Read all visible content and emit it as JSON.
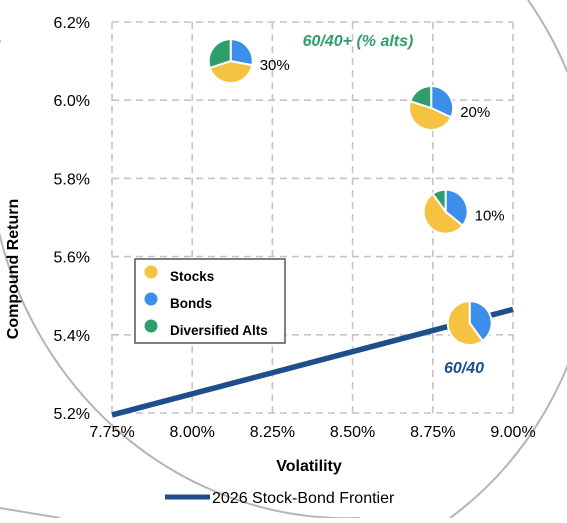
{
  "chart_data": {
    "type": "scatter",
    "xlabel": "Volatility",
    "ylabel": "Compound Return",
    "xlim": [
      7.75,
      9.0
    ],
    "ylim": [
      5.2,
      6.2
    ],
    "x_ticks": [
      "7.75%",
      "8.00%",
      "8.25%",
      "8.50%",
      "8.75%",
      "9.00%"
    ],
    "y_ticks": [
      "5.2%",
      "5.4%",
      "5.6%",
      "5.8%",
      "6.0%",
      "6.2%"
    ],
    "grid": true,
    "frontier": {
      "name": "2026 Stock-Bond Frontier",
      "color": "#1f4e8c",
      "x": [
        7.75,
        9.0
      ],
      "y": [
        5.195,
        5.465
      ]
    },
    "portfolios": [
      {
        "label": "60/40",
        "x": 8.865,
        "y": 5.43,
        "slices": {
          "stocks": 60,
          "bonds": 40,
          "alts": 0
        }
      },
      {
        "label": "10%",
        "x": 8.79,
        "y": 5.715,
        "slices": {
          "stocks": 54,
          "bonds": 36,
          "alts": 10
        }
      },
      {
        "label": "20%",
        "x": 8.745,
        "y": 5.98,
        "slices": {
          "stocks": 48,
          "bonds": 32,
          "alts": 20
        }
      },
      {
        "label": "30%",
        "x": 8.12,
        "y": 6.1,
        "slices": {
          "stocks": 42,
          "bonds": 28,
          "alts": 30
        }
      }
    ],
    "legend": {
      "placement": "center-left",
      "entries": [
        {
          "key": "stocks",
          "label": "Stocks",
          "color": "#f5c242"
        },
        {
          "key": "bonds",
          "label": "Bonds",
          "color": "#3b8eea"
        },
        {
          "key": "alts",
          "label": "Diversified Alts",
          "color": "#2e9e6a"
        }
      ]
    },
    "annotations": [
      {
        "text": "60/40+ (% alts)",
        "color": "#2e9e6a"
      },
      {
        "text": "60/40",
        "color": "#1f4e8c"
      }
    ],
    "bottom_legend": "2026 Stock-Bond Frontier"
  }
}
